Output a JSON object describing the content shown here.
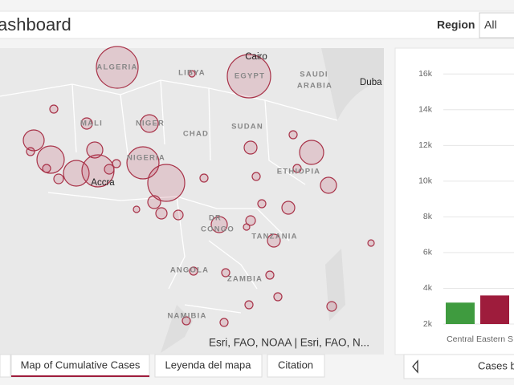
{
  "header": {
    "title": "ashboard",
    "region_label": "Region",
    "region_value": "All"
  },
  "map": {
    "labels": [
      "ALGERIA",
      "LIBYA",
      "EGYPT",
      "SAUDI",
      "ARABIA",
      "MALI",
      "NIGER",
      "CHAD",
      "SUDAN",
      "NIGERIA",
      "ETHIOPIA",
      "DR",
      "CONGO",
      "TANZANIA",
      "ANGOLA",
      "ZAMBIA",
      "NAMIBIA"
    ],
    "cities": [
      "Cairo",
      "Duba",
      "Accra"
    ],
    "attribution": "Esri, FAO, NOAA | Esri, FAO, N..."
  },
  "tabs": [
    "Map of Cumulative Cases",
    "Leyenda del mapa",
    "Citation"
  ],
  "chart_data": {
    "type": "bar",
    "categories": [
      "Central",
      "Eastern S"
    ],
    "series": [
      {
        "values": [
          3200,
          3600
        ]
      }
    ],
    "colors": [
      "#3f9b3f",
      "#9e1c3c"
    ],
    "ylim": [
      2000,
      17000
    ],
    "yticks": [
      {
        "value": 2000,
        "label": "2k"
      },
      {
        "value": 4000,
        "label": "4k"
      },
      {
        "value": 6000,
        "label": "6k"
      },
      {
        "value": 8000,
        "label": "8k"
      },
      {
        "value": 10000,
        "label": "10k"
      },
      {
        "value": 12000,
        "label": "12k"
      },
      {
        "value": 14000,
        "label": "14k"
      },
      {
        "value": 16000,
        "label": "16k"
      }
    ],
    "grid": true,
    "footer": "Cases b"
  }
}
